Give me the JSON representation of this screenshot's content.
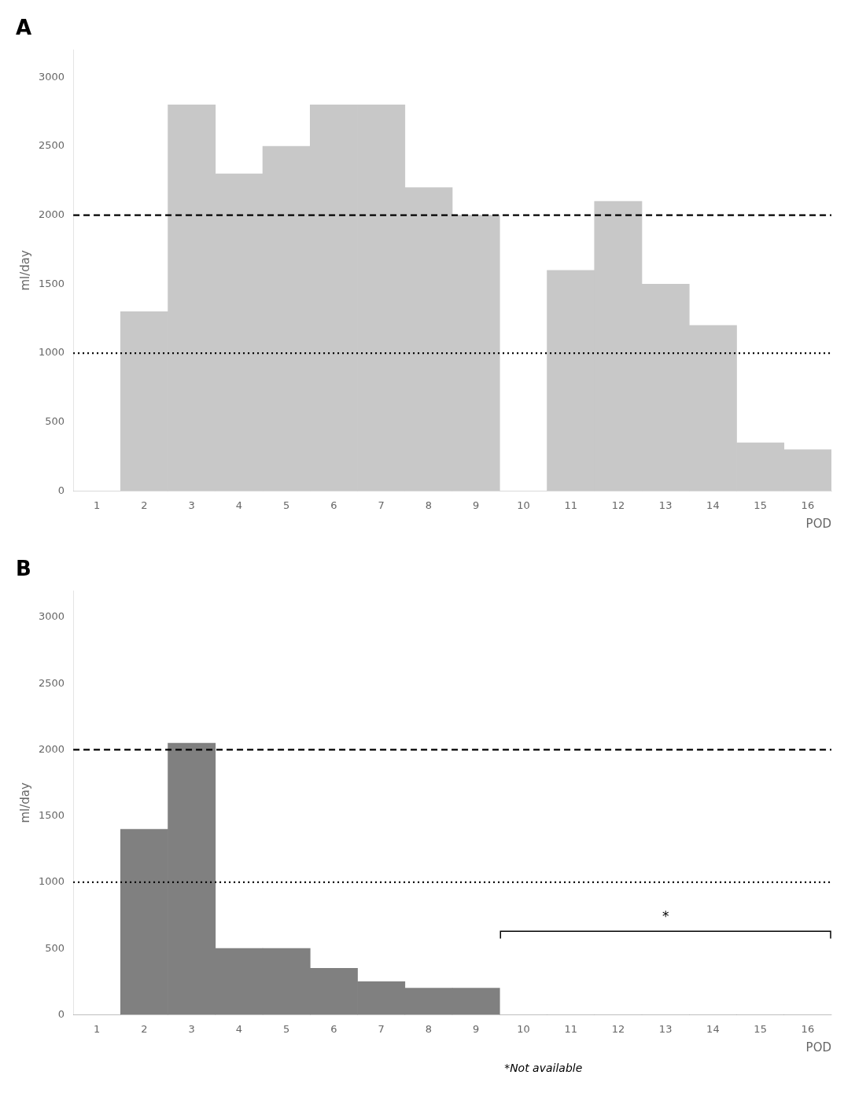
{
  "chart_data": [
    {
      "type": "bar",
      "title": "A",
      "x": [
        1,
        2,
        3,
        4,
        5,
        6,
        7,
        8,
        9,
        10,
        11,
        12,
        13,
        14,
        15,
        16
      ],
      "values": [
        0,
        1300,
        2800,
        2300,
        2500,
        2800,
        2800,
        2200,
        2000,
        0,
        1600,
        2100,
        1500,
        1200,
        350,
        300
      ],
      "color": "#c8c8c8",
      "xlabel": "POD",
      "ylabel": "ml/day",
      "xlim": [
        0.5,
        16.5
      ],
      "xticks": [
        1,
        2,
        3,
        4,
        5,
        6,
        7,
        8,
        9,
        10,
        11,
        12,
        13,
        14,
        15,
        16
      ],
      "ylim": [
        0,
        3200
      ],
      "yticks": [
        0,
        500,
        1000,
        1500,
        2000,
        2500,
        3000
      ],
      "grid": false,
      "hlines": [
        {
          "y": 2000,
          "line_style": "dashed"
        },
        {
          "y": 1000,
          "line_style": "dotted"
        }
      ]
    },
    {
      "type": "bar",
      "title": "B",
      "x": [
        1,
        2,
        3,
        4,
        5,
        6,
        7,
        8,
        9,
        10,
        11,
        12,
        13,
        14,
        15,
        16
      ],
      "values": [
        0,
        1400,
        2050,
        500,
        500,
        350,
        250,
        200,
        200,
        0,
        0,
        0,
        0,
        0,
        0,
        0
      ],
      "color": "#808080",
      "xlabel": "POD",
      "ylabel": "ml/day",
      "xlim": [
        0.5,
        16.5
      ],
      "xticks": [
        1,
        2,
        3,
        4,
        5,
        6,
        7,
        8,
        9,
        10,
        11,
        12,
        13,
        14,
        15,
        16
      ],
      "ylim": [
        0,
        3200
      ],
      "yticks": [
        0,
        500,
        1000,
        1500,
        2000,
        2500,
        3000
      ],
      "grid": false,
      "hlines": [
        {
          "y": 2000,
          "line_style": "dashed"
        },
        {
          "y": 1000,
          "line_style": "dotted"
        }
      ],
      "bracket": {
        "x_start": 9.5,
        "x_end": 16.5,
        "y": 630,
        "cap": 55,
        "label": "*",
        "label_x": 13.0,
        "label_y": 710
      },
      "annotations": [
        {
          "text": "*Not available"
        }
      ]
    }
  ]
}
